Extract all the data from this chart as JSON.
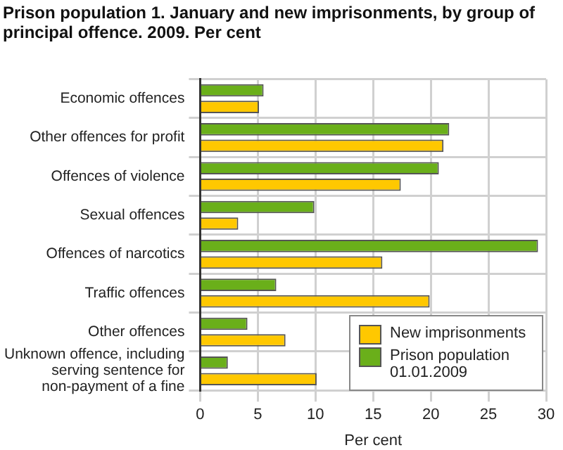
{
  "chart_data": {
    "type": "bar",
    "orientation": "horizontal",
    "title": "Prison population 1. January and new imprisonments, by group of principal offence. 2009. Per cent",
    "xlabel": "Per cent",
    "categories": [
      "Economic offences",
      "Other offences for profit",
      "Offences of violence",
      "Sexual offences",
      "Offences of narcotics",
      "Traffic offences",
      "Other offences",
      "Unknown offence, including serving sentence for non-payment of a fine"
    ],
    "series": [
      {
        "name": "New imprisonments",
        "color": "#ffc800",
        "values": [
          5.1,
          21.1,
          17.4,
          3.3,
          15.8,
          19.9,
          7.4,
          10.1
        ]
      },
      {
        "name": "Prison population 01.01.2009",
        "color": "#6aaf1a",
        "values": [
          5.5,
          21.6,
          20.7,
          9.9,
          29.3,
          6.6,
          4.1,
          2.4
        ]
      }
    ],
    "xlim": [
      0,
      30
    ],
    "xticks": [
      0,
      5,
      10,
      15,
      20,
      25,
      30
    ],
    "grid": true,
    "legend": "bottom right"
  }
}
